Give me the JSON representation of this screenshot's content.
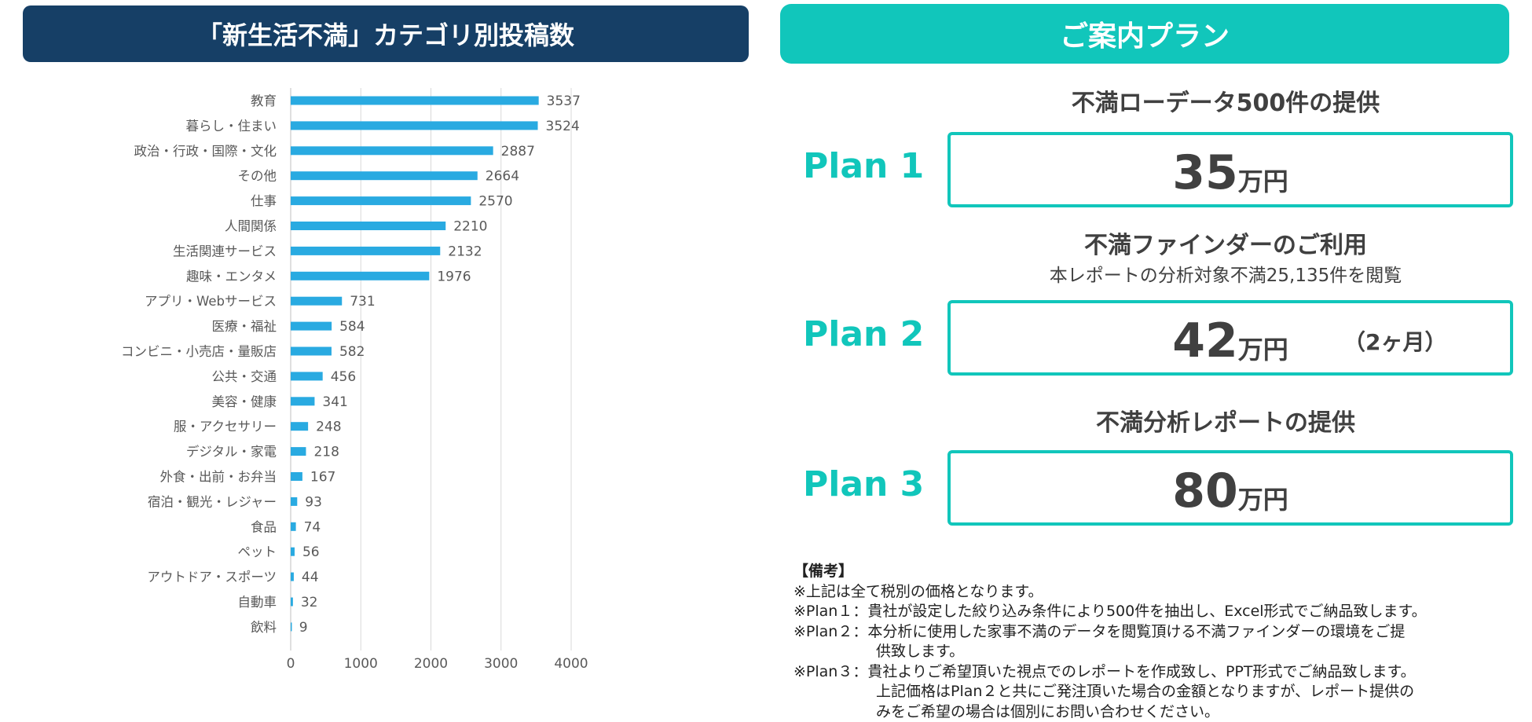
{
  "left_header": {
    "title": "「新生活不満」カテゴリ別投稿数"
  },
  "right_header": {
    "title": "ご案内プラン"
  },
  "chart_data": {
    "type": "bar",
    "orientation": "horizontal",
    "categories": [
      "教育",
      "暮らし・住まい",
      "政治・行政・国際・文化",
      "その他",
      "仕事",
      "人間関係",
      "生活関連サービス",
      "趣味・エンタメ",
      "アプリ・Webサービス",
      "医療・福祉",
      "コンビニ・小売店・量販店",
      "公共・交通",
      "美容・健康",
      "服・アクセサリー",
      "デジタル・家電",
      "外食・出前・お弁当",
      "宿泊・観光・レジャー",
      "食品",
      "ペット",
      "アウトドア・スポーツ",
      "自動車",
      "飲料"
    ],
    "values": [
      3537,
      3524,
      2887,
      2664,
      2570,
      2210,
      2132,
      1976,
      731,
      584,
      582,
      456,
      341,
      248,
      218,
      167,
      93,
      74,
      56,
      44,
      32,
      9
    ],
    "xlim": [
      0,
      4000
    ],
    "xticks": [
      0,
      1000,
      2000,
      3000,
      4000
    ],
    "grid": true,
    "bar_color": "#29aae1"
  },
  "plans": [
    {
      "title": "不満ローデータ500件の提供",
      "subtitle": "",
      "label": "Plan 1",
      "price": "35",
      "unit": "万円",
      "duration": ""
    },
    {
      "title": "不満ファインダーのご利用",
      "subtitle": "本レポートの分析対象不満25,135件を閲覧",
      "label": "Plan 2",
      "price": "42",
      "unit": "万円",
      "duration": "（2ヶ月）"
    },
    {
      "title": "不満分析レポートの提供",
      "subtitle": "",
      "label": "Plan 3",
      "price": "80",
      "unit": "万円",
      "duration": ""
    }
  ],
  "notes": {
    "heading": "【備考】",
    "lines": [
      "※上記は全て税別の価格となります。",
      "※Plan１：貴社が設定した絞り込み条件により500件を抽出し、Excel形式でご納品致します。",
      "※Plan２：本分析に使用した家事不満のデータを閲覧頂ける不満ファインダーの環境をご提",
      "供致します。",
      "※Plan３：貴社よりご希望頂いた視点でのレポートを作成致し、PPT形式でご納品致します。",
      "上記価格はPlan２と共にご発注頂いた場合の金額となりますが、レポート提供の",
      "みをご希望の場合は個別にお問い合わせください。"
    ]
  },
  "colors": {
    "navy": "#163f66",
    "teal": "#11c6bb",
    "bar": "#29aae1"
  }
}
